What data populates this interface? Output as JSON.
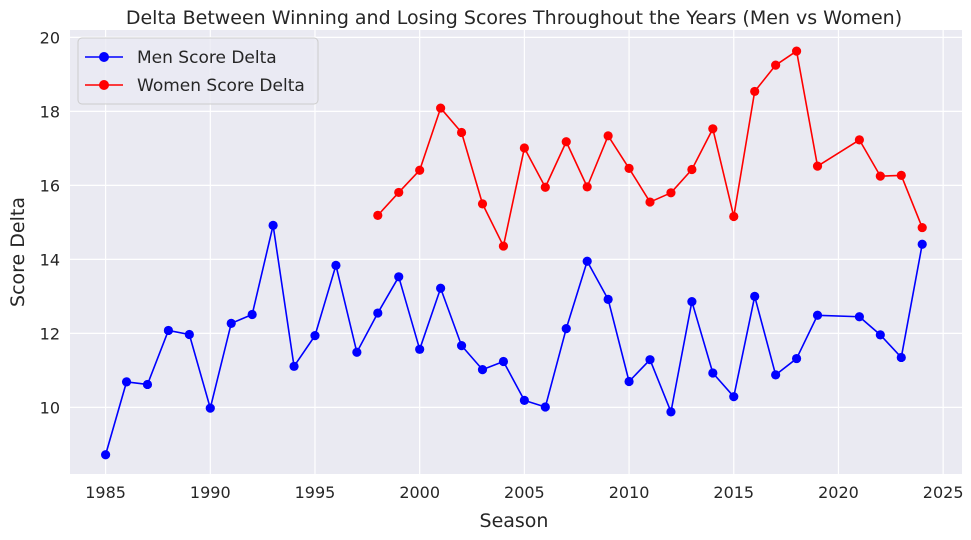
{
  "chart_data": {
    "type": "line",
    "title": "Delta Between Winning and Losing Scores Throughout the Years (Men vs Women)",
    "xlabel": "Season",
    "ylabel": "Score Delta",
    "xlim": [
      1983.3,
      2025.9
    ],
    "ylim": [
      8.2,
      20.2
    ],
    "xticks": [
      1985,
      1990,
      1995,
      2000,
      2005,
      2010,
      2015,
      2020,
      2025
    ],
    "yticks": [
      10,
      12,
      14,
      16,
      18,
      20
    ],
    "grid": true,
    "legend_position": "top-left",
    "background_color": "#eaeaf2",
    "grid_color": "#ffffff",
    "series": [
      {
        "name": "Men Score Delta",
        "color": "#0000ff",
        "marker": "circle",
        "x": [
          1985,
          1986,
          1987,
          1988,
          1989,
          1990,
          1991,
          1992,
          1993,
          1994,
          1995,
          1996,
          1997,
          1998,
          1999,
          2000,
          2001,
          2002,
          2003,
          2004,
          2005,
          2006,
          2007,
          2008,
          2009,
          2010,
          2011,
          2012,
          2013,
          2014,
          2015,
          2016,
          2017,
          2018,
          2019,
          2021,
          2022,
          2023,
          2024
        ],
        "y": [
          8.72,
          10.69,
          10.62,
          12.08,
          11.97,
          9.98,
          12.27,
          12.51,
          14.92,
          11.11,
          11.94,
          13.84,
          11.49,
          12.55,
          13.53,
          11.57,
          13.22,
          11.67,
          11.02,
          11.24,
          10.19,
          10.01,
          12.13,
          13.95,
          12.92,
          10.7,
          11.29,
          9.88,
          12.86,
          10.93,
          10.29,
          13.0,
          10.88,
          11.32,
          12.49,
          12.45,
          11.96,
          11.35,
          14.41
        ]
      },
      {
        "name": "Women Score Delta",
        "color": "#ff0000",
        "marker": "circle",
        "x": [
          1998,
          1999,
          2000,
          2001,
          2002,
          2003,
          2004,
          2005,
          2006,
          2007,
          2008,
          2009,
          2010,
          2011,
          2012,
          2013,
          2014,
          2015,
          2016,
          2017,
          2018,
          2019,
          2021,
          2022,
          2023,
          2024
        ],
        "y": [
          15.19,
          15.81,
          16.41,
          18.09,
          17.43,
          15.5,
          14.36,
          17.01,
          15.95,
          17.18,
          15.96,
          17.34,
          16.46,
          15.55,
          15.8,
          16.43,
          17.53,
          15.16,
          18.54,
          19.25,
          19.63,
          16.52,
          17.23,
          16.25,
          16.27,
          14.86
        ]
      }
    ]
  }
}
